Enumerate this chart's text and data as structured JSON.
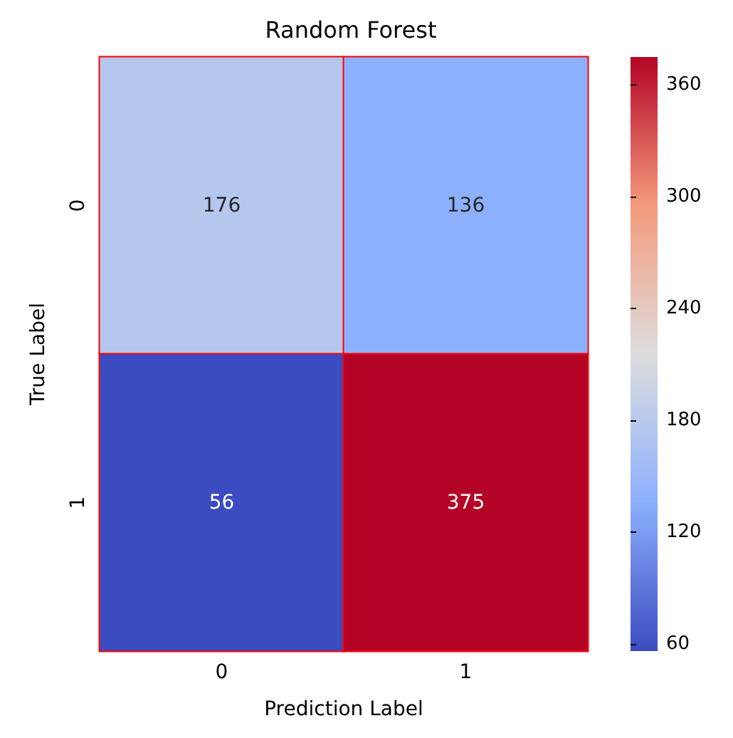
{
  "chart_data": {
    "type": "heatmap",
    "title": "Random Forest",
    "xlabel": "Prediction Label",
    "ylabel": "True Label",
    "categories": [
      "0",
      "1"
    ],
    "y_categories": [
      "0",
      "1"
    ],
    "cells": [
      [
        176,
        136
      ],
      [
        56,
        375
      ]
    ],
    "clim": [
      56,
      375
    ],
    "cticks": [
      60,
      120,
      180,
      240,
      300,
      360
    ],
    "data_labels": true
  }
}
